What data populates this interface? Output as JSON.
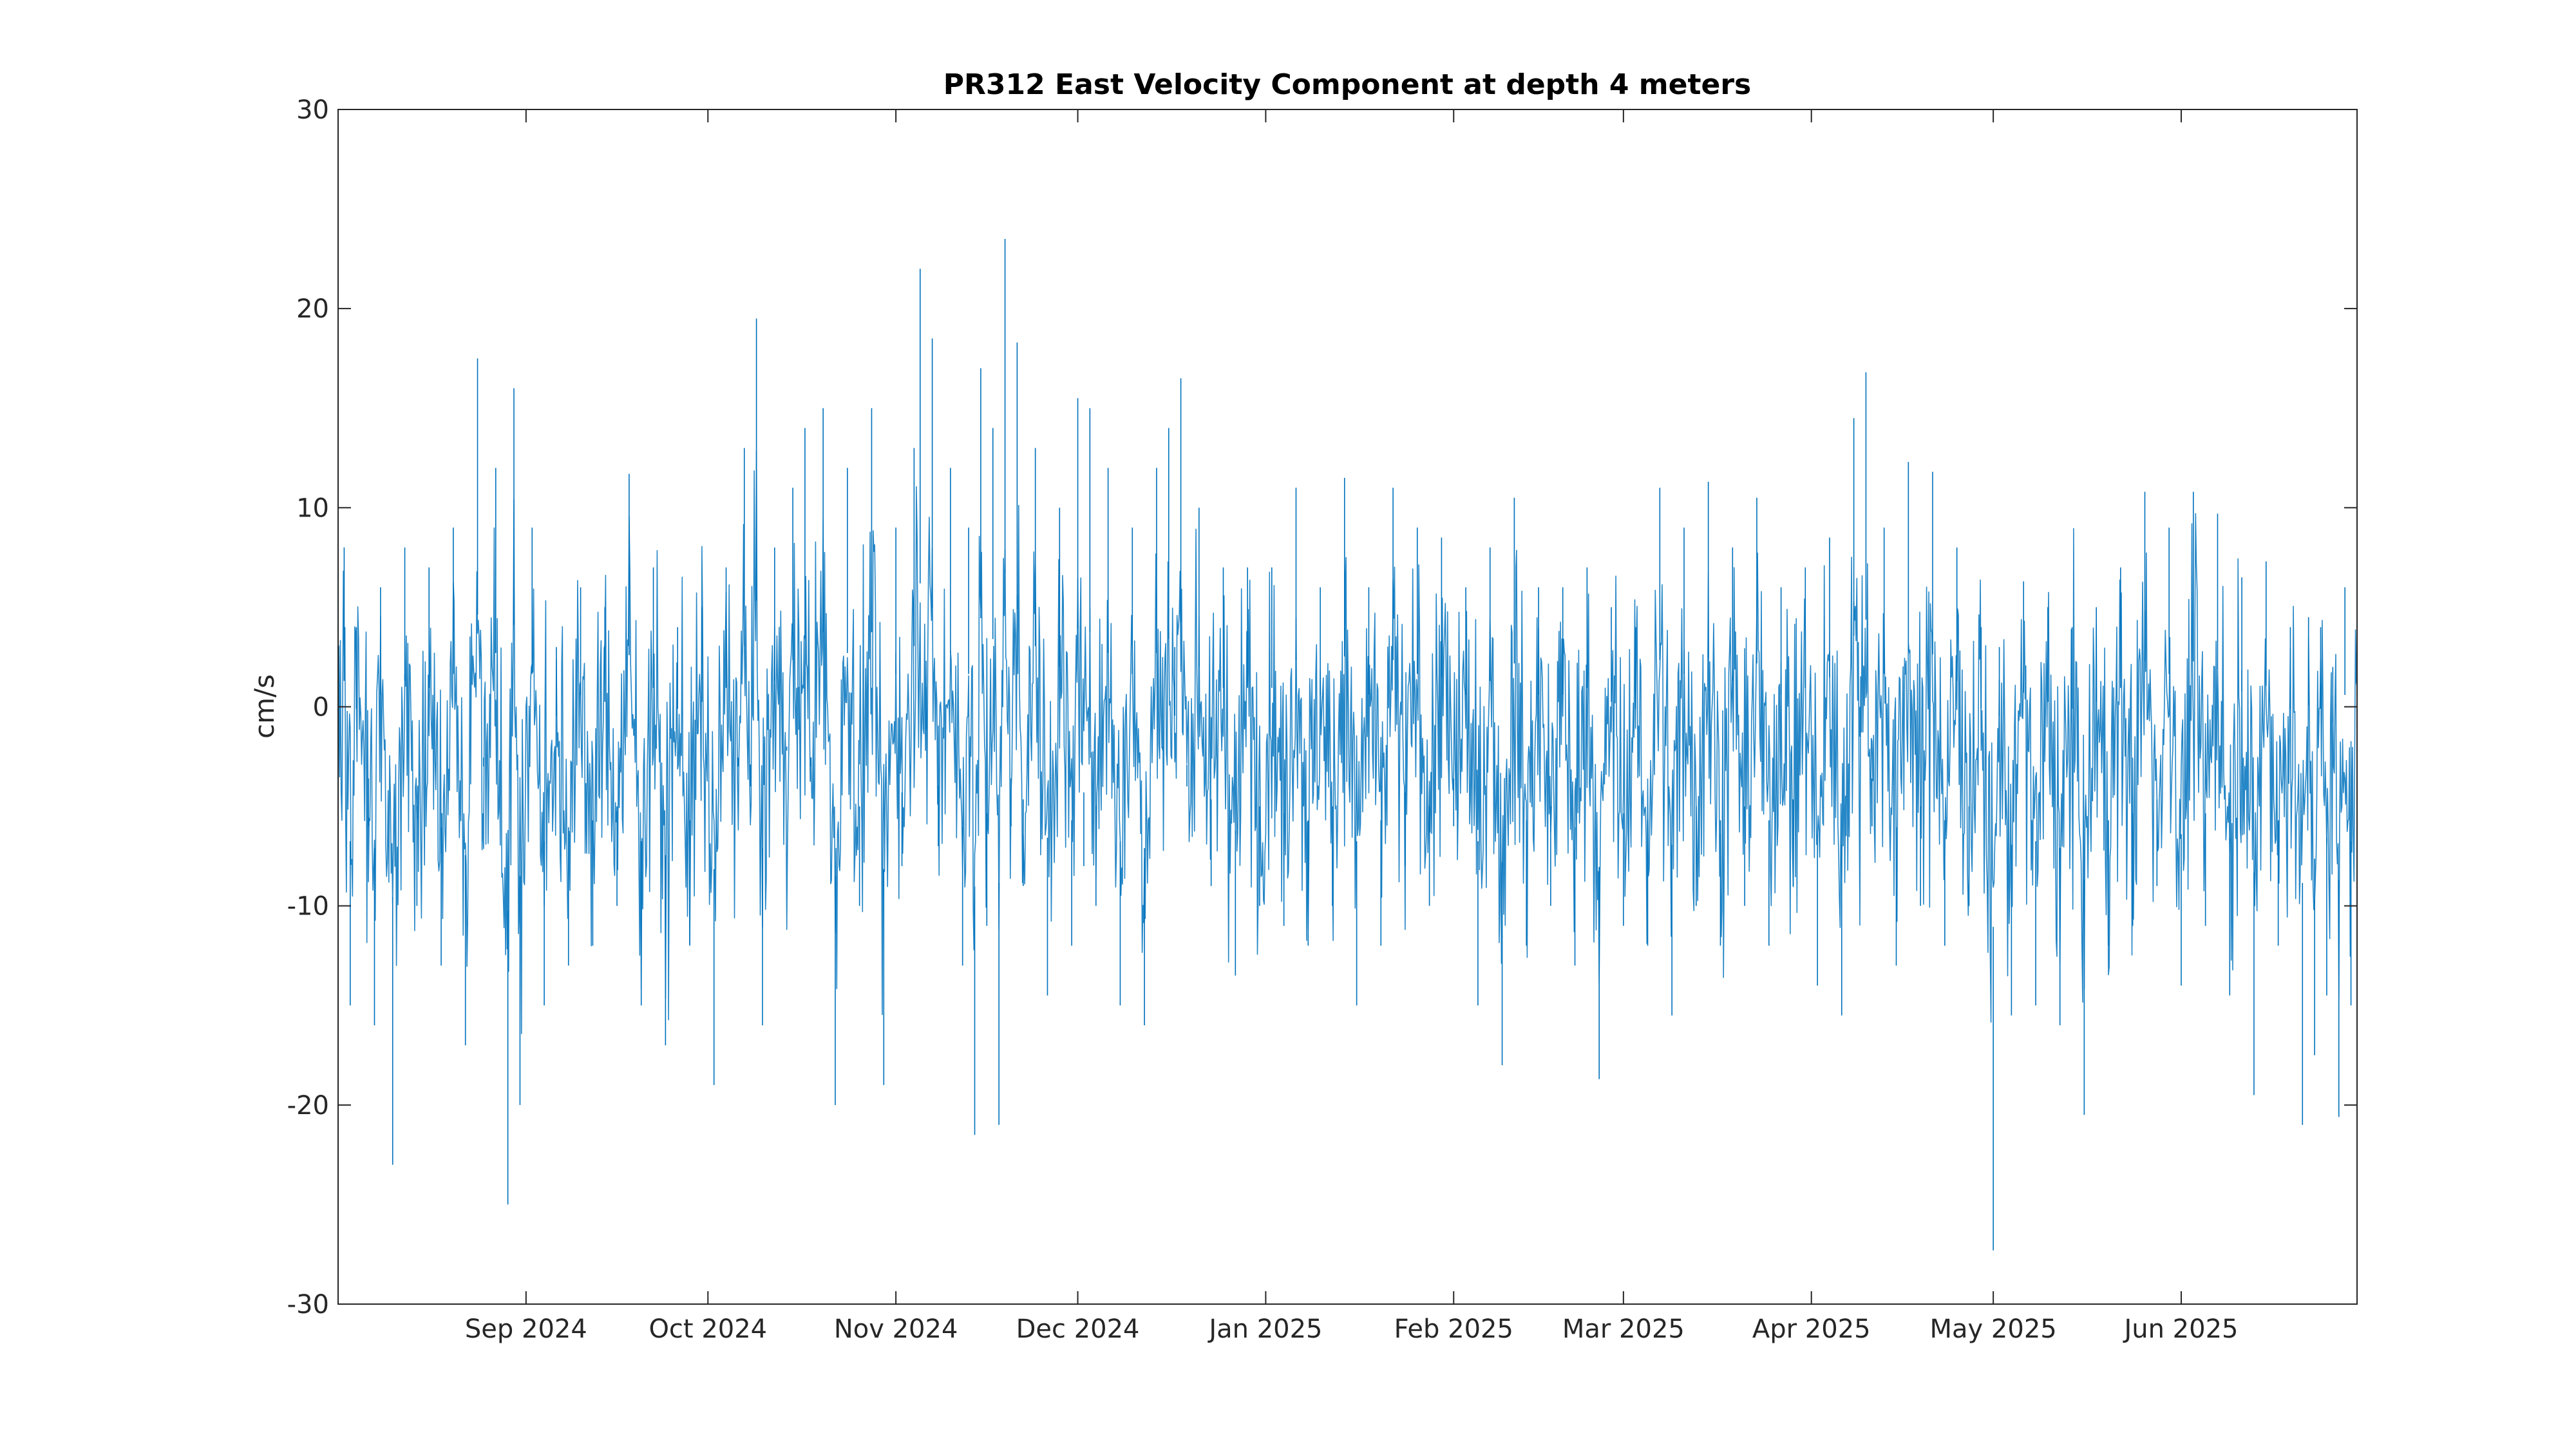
{
  "chart_data": {
    "type": "line",
    "title": "PR312 East Velocity Component at depth 4 meters",
    "xlabel": "",
    "ylabel": "cm/s",
    "xlim": [
      "2024-08-01",
      "2025-06-30"
    ],
    "ylim": [
      -30,
      30
    ],
    "x_ticks": [
      {
        "date": "2024-09-01",
        "label": "Sep 2024"
      },
      {
        "date": "2024-10-01",
        "label": "Oct 2024"
      },
      {
        "date": "2024-11-01",
        "label": "Nov 2024"
      },
      {
        "date": "2024-12-01",
        "label": "Dec 2024"
      },
      {
        "date": "2025-01-01",
        "label": "Jan 2025"
      },
      {
        "date": "2025-02-01",
        "label": "Feb 2025"
      },
      {
        "date": "2025-03-01",
        "label": "Mar 2025"
      },
      {
        "date": "2025-04-01",
        "label": "Apr 2025"
      },
      {
        "date": "2025-05-01",
        "label": "May 2025"
      },
      {
        "date": "2025-06-01",
        "label": "Jun 2025"
      }
    ],
    "y_ticks": [
      30,
      20,
      10,
      0,
      -10,
      -20,
      -30
    ],
    "grid": false,
    "legend": "none",
    "series": [
      {
        "color": "#0072BD",
        "points": [
          [
            "2024-08-01",
            -2
          ],
          [
            "2024-08-02",
            8
          ],
          [
            "2024-08-03",
            -15
          ],
          [
            "2024-08-04",
            4
          ],
          [
            "2024-08-06",
            -6
          ],
          [
            "2024-08-07",
            -16
          ],
          [
            "2024-08-08",
            6
          ],
          [
            "2024-08-10",
            -23
          ],
          [
            "2024-08-12",
            8
          ],
          [
            "2024-08-14",
            -10
          ],
          [
            "2024-08-16",
            7
          ],
          [
            "2024-08-18",
            -13
          ],
          [
            "2024-08-20",
            9
          ],
          [
            "2024-08-22",
            -17
          ],
          [
            "2024-08-24",
            17.5
          ],
          [
            "2024-08-25",
            -3
          ],
          [
            "2024-08-27",
            12
          ],
          [
            "2024-08-29",
            -25
          ],
          [
            "2024-08-30",
            16
          ],
          [
            "2024-08-31",
            -20
          ],
          [
            "2024-09-02",
            9
          ],
          [
            "2024-09-04",
            -15
          ],
          [
            "2024-09-06",
            3
          ],
          [
            "2024-09-08",
            -13
          ],
          [
            "2024-09-10",
            6
          ],
          [
            "2024-09-12",
            -12
          ],
          [
            "2024-09-14",
            5
          ],
          [
            "2024-09-16",
            -10
          ],
          [
            "2024-09-18",
            11.7
          ],
          [
            "2024-09-20",
            -15
          ],
          [
            "2024-09-22",
            7
          ],
          [
            "2024-09-24",
            -17
          ],
          [
            "2024-09-26",
            4
          ],
          [
            "2024-09-28",
            -12
          ],
          [
            "2024-09-30",
            5
          ],
          [
            "2024-10-02",
            -19
          ],
          [
            "2024-10-04",
            7
          ],
          [
            "2024-10-06",
            -3
          ],
          [
            "2024-10-07",
            13
          ],
          [
            "2024-10-08",
            -4
          ],
          [
            "2024-10-09",
            19.5
          ],
          [
            "2024-10-10",
            -16
          ],
          [
            "2024-10-12",
            8
          ],
          [
            "2024-10-14",
            -2
          ],
          [
            "2024-10-15",
            11
          ],
          [
            "2024-10-16",
            1
          ],
          [
            "2024-10-17",
            14
          ],
          [
            "2024-10-18",
            -3
          ],
          [
            "2024-10-20",
            15
          ],
          [
            "2024-10-22",
            -20
          ],
          [
            "2024-10-24",
            12
          ],
          [
            "2024-10-26",
            -10
          ],
          [
            "2024-10-28",
            15
          ],
          [
            "2024-10-30",
            -19
          ],
          [
            "2024-11-01",
            9
          ],
          [
            "2024-11-02",
            -8
          ],
          [
            "2024-11-04",
            13
          ],
          [
            "2024-11-05",
            22
          ],
          [
            "2024-11-06",
            1
          ],
          [
            "2024-11-07",
            18.5
          ],
          [
            "2024-11-08",
            -7
          ],
          [
            "2024-11-10",
            12
          ],
          [
            "2024-11-12",
            -13
          ],
          [
            "2024-11-13",
            9
          ],
          [
            "2024-11-14",
            -21.5
          ],
          [
            "2024-11-15",
            17
          ],
          [
            "2024-11-16",
            -11
          ],
          [
            "2024-11-17",
            14
          ],
          [
            "2024-11-18",
            -21
          ],
          [
            "2024-11-19",
            23.5
          ],
          [
            "2024-11-20",
            -6
          ],
          [
            "2024-11-21",
            18.3
          ],
          [
            "2024-11-22",
            -9
          ],
          [
            "2024-11-24",
            13
          ],
          [
            "2024-11-26",
            -14.5
          ],
          [
            "2024-11-28",
            10
          ],
          [
            "2024-11-30",
            -12
          ],
          [
            "2024-12-01",
            15.5
          ],
          [
            "2024-12-02",
            -8
          ],
          [
            "2024-12-03",
            15
          ],
          [
            "2024-12-04",
            -10
          ],
          [
            "2024-12-06",
            12
          ],
          [
            "2024-12-08",
            -15
          ],
          [
            "2024-12-10",
            9
          ],
          [
            "2024-12-12",
            -16
          ],
          [
            "2024-12-14",
            12
          ],
          [
            "2024-12-15",
            -2
          ],
          [
            "2024-12-16",
            14
          ],
          [
            "2024-12-17",
            3
          ],
          [
            "2024-12-18",
            16.5
          ],
          [
            "2024-12-19",
            -4
          ],
          [
            "2024-12-21",
            10
          ],
          [
            "2024-12-23",
            -9
          ],
          [
            "2024-12-25",
            7
          ],
          [
            "2024-12-27",
            -13.5
          ],
          [
            "2024-12-29",
            7
          ],
          [
            "2024-12-31",
            -10
          ],
          [
            "2025-01-02",
            7
          ],
          [
            "2025-01-04",
            -11
          ],
          [
            "2025-01-06",
            11
          ],
          [
            "2025-01-08",
            -12
          ],
          [
            "2025-01-10",
            6
          ],
          [
            "2025-01-12",
            -10
          ],
          [
            "2025-01-14",
            11.5
          ],
          [
            "2025-01-16",
            -15
          ],
          [
            "2025-01-18",
            6
          ],
          [
            "2025-01-20",
            -12
          ],
          [
            "2025-01-22",
            11
          ],
          [
            "2025-01-24",
            -8
          ],
          [
            "2025-01-26",
            9
          ],
          [
            "2025-01-28",
            -10
          ],
          [
            "2025-01-30",
            8.5
          ],
          [
            "2025-02-01",
            -6
          ],
          [
            "2025-02-03",
            6
          ],
          [
            "2025-02-05",
            -15
          ],
          [
            "2025-02-07",
            8
          ],
          [
            "2025-02-09",
            -18
          ],
          [
            "2025-02-11",
            10.5
          ],
          [
            "2025-02-13",
            -12
          ],
          [
            "2025-02-15",
            6
          ],
          [
            "2025-02-17",
            -10
          ],
          [
            "2025-02-19",
            6
          ],
          [
            "2025-02-21",
            -13
          ],
          [
            "2025-02-23",
            7
          ],
          [
            "2025-02-25",
            -18.7
          ],
          [
            "2025-02-27",
            5
          ],
          [
            "2025-03-01",
            -11
          ],
          [
            "2025-03-03",
            4
          ],
          [
            "2025-03-05",
            -12
          ],
          [
            "2025-03-07",
            11
          ],
          [
            "2025-03-09",
            -15.5
          ],
          [
            "2025-03-11",
            9
          ],
          [
            "2025-03-13",
            -10
          ],
          [
            "2025-03-15",
            11.3
          ],
          [
            "2025-03-17",
            -12
          ],
          [
            "2025-03-19",
            8
          ],
          [
            "2025-03-21",
            -10
          ],
          [
            "2025-03-23",
            10.5
          ],
          [
            "2025-03-25",
            -12
          ],
          [
            "2025-03-27",
            6
          ],
          [
            "2025-03-29",
            -9
          ],
          [
            "2025-03-31",
            7
          ],
          [
            "2025-04-02",
            -14
          ],
          [
            "2025-04-04",
            8.5
          ],
          [
            "2025-04-06",
            -15.5
          ],
          [
            "2025-04-08",
            14.5
          ],
          [
            "2025-04-09",
            0
          ],
          [
            "2025-04-10",
            16.8
          ],
          [
            "2025-04-11",
            -6
          ],
          [
            "2025-04-13",
            9
          ],
          [
            "2025-04-15",
            -13
          ],
          [
            "2025-04-17",
            12.3
          ],
          [
            "2025-04-19",
            -10
          ],
          [
            "2025-04-21",
            11.8
          ],
          [
            "2025-04-23",
            -12
          ],
          [
            "2025-04-25",
            8
          ],
          [
            "2025-04-27",
            -10
          ],
          [
            "2025-04-29",
            4
          ],
          [
            "2025-05-01",
            -27.3
          ],
          [
            "2025-05-02",
            3
          ],
          [
            "2025-05-04",
            -15.5
          ],
          [
            "2025-05-06",
            6.3
          ],
          [
            "2025-05-08",
            -15
          ],
          [
            "2025-05-10",
            5
          ],
          [
            "2025-05-12",
            -16
          ],
          [
            "2025-05-14",
            4
          ],
          [
            "2025-05-16",
            -20.5
          ],
          [
            "2025-05-18",
            5
          ],
          [
            "2025-05-20",
            -12
          ],
          [
            "2025-05-22",
            7
          ],
          [
            "2025-05-24",
            -11
          ],
          [
            "2025-05-26",
            10.8
          ],
          [
            "2025-05-28",
            -9
          ],
          [
            "2025-05-30",
            9
          ],
          [
            "2025-06-01",
            -14
          ],
          [
            "2025-06-03",
            10.8
          ],
          [
            "2025-06-05",
            -11
          ],
          [
            "2025-06-07",
            9.7
          ],
          [
            "2025-06-09",
            -14.5
          ],
          [
            "2025-06-11",
            6.5
          ],
          [
            "2025-06-13",
            -19.5
          ],
          [
            "2025-06-15",
            7.3
          ],
          [
            "2025-06-17",
            -12
          ],
          [
            "2025-06-19",
            4
          ],
          [
            "2025-06-21",
            -21
          ],
          [
            "2025-06-22",
            4.5
          ],
          [
            "2025-06-23",
            -17.5
          ],
          [
            "2025-06-24",
            4
          ],
          [
            "2025-06-25",
            -14.5
          ],
          [
            "2025-06-26",
            2
          ],
          [
            "2025-06-27",
            -20.6
          ],
          [
            "2025-06-28",
            6
          ],
          [
            "2025-06-29",
            -15
          ],
          [
            "2025-06-30",
            1
          ]
        ]
      }
    ]
  }
}
